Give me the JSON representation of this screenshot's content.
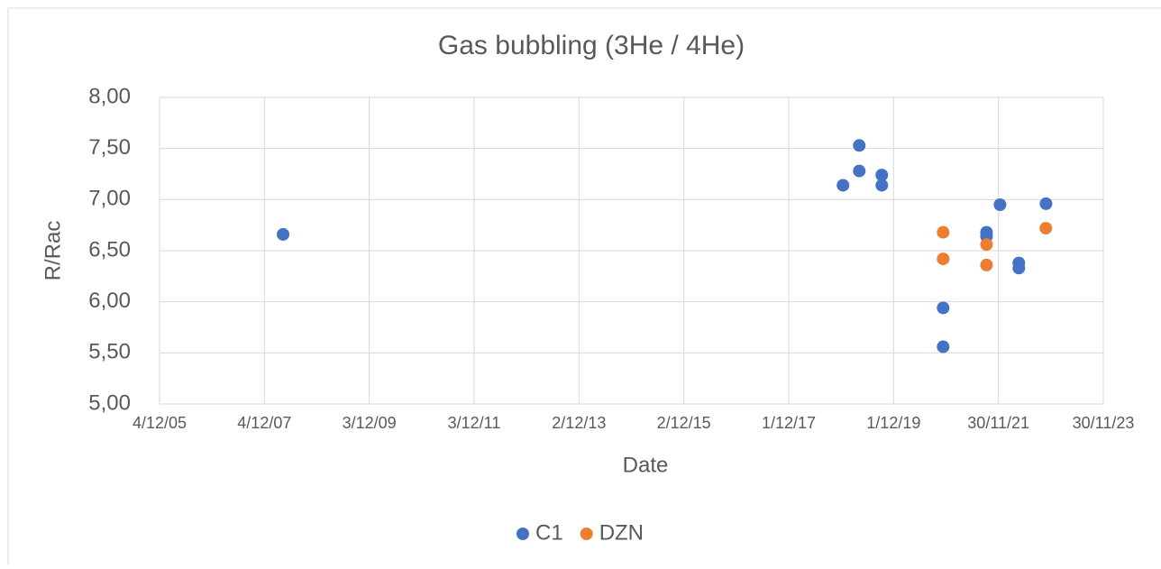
{
  "chart_data": {
    "type": "scatter",
    "title": "Gas bubbling (3He / 4He)",
    "x_label": "Date",
    "y_label": "R/Rac",
    "xlim": [
      "2005-12-04",
      "2023-11-30"
    ],
    "xticks": [
      {
        "value": "2005-12-04",
        "label": "4/12/05"
      },
      {
        "value": "2007-12-04",
        "label": "4/12/07"
      },
      {
        "value": "2009-12-03",
        "label": "3/12/09"
      },
      {
        "value": "2011-12-03",
        "label": "3/12/11"
      },
      {
        "value": "2013-12-02",
        "label": "2/12/13"
      },
      {
        "value": "2015-12-02",
        "label": "2/12/15"
      },
      {
        "value": "2017-12-01",
        "label": "1/12/17"
      },
      {
        "value": "2019-12-01",
        "label": "1/12/19"
      },
      {
        "value": "2021-11-30",
        "label": "30/11/21"
      },
      {
        "value": "2023-11-30",
        "label": "30/11/23"
      }
    ],
    "ylim": [
      5,
      8
    ],
    "yticks": [
      {
        "value": 5,
        "label": "5,00"
      },
      {
        "value": 5.5,
        "label": "5,50"
      },
      {
        "value": 6,
        "label": "6,00"
      },
      {
        "value": 6.5,
        "label": "6,50"
      },
      {
        "value": 7,
        "label": "7,00"
      },
      {
        "value": 7.5,
        "label": "7,50"
      },
      {
        "value": 8,
        "label": "8,00"
      }
    ],
    "grid": true,
    "legend": "bottom",
    "series": [
      {
        "name": "C1",
        "color": "#4472c4",
        "x": [
          "2008-04-12",
          "2018-12-14",
          "2019-04-06",
          "2019-04-06",
          "2019-09-10",
          "2019-09-10",
          "2020-11-10",
          "2020-11-10",
          "2021-09-08",
          "2021-09-08",
          "2021-12-11",
          "2022-04-21",
          "2022-04-21",
          "2022-10-27"
        ],
        "values": [
          6.66,
          7.14,
          7.53,
          7.28,
          7.24,
          7.14,
          5.94,
          5.56,
          6.68,
          6.64,
          6.95,
          6.38,
          6.33,
          6.96
        ]
      },
      {
        "name": "DZN",
        "color": "#ed7d31",
        "x": [
          "2020-11-10",
          "2020-11-10",
          "2021-09-08",
          "2021-09-08",
          "2022-10-26"
        ],
        "values": [
          6.68,
          6.42,
          6.56,
          6.36,
          6.72
        ]
      }
    ]
  }
}
